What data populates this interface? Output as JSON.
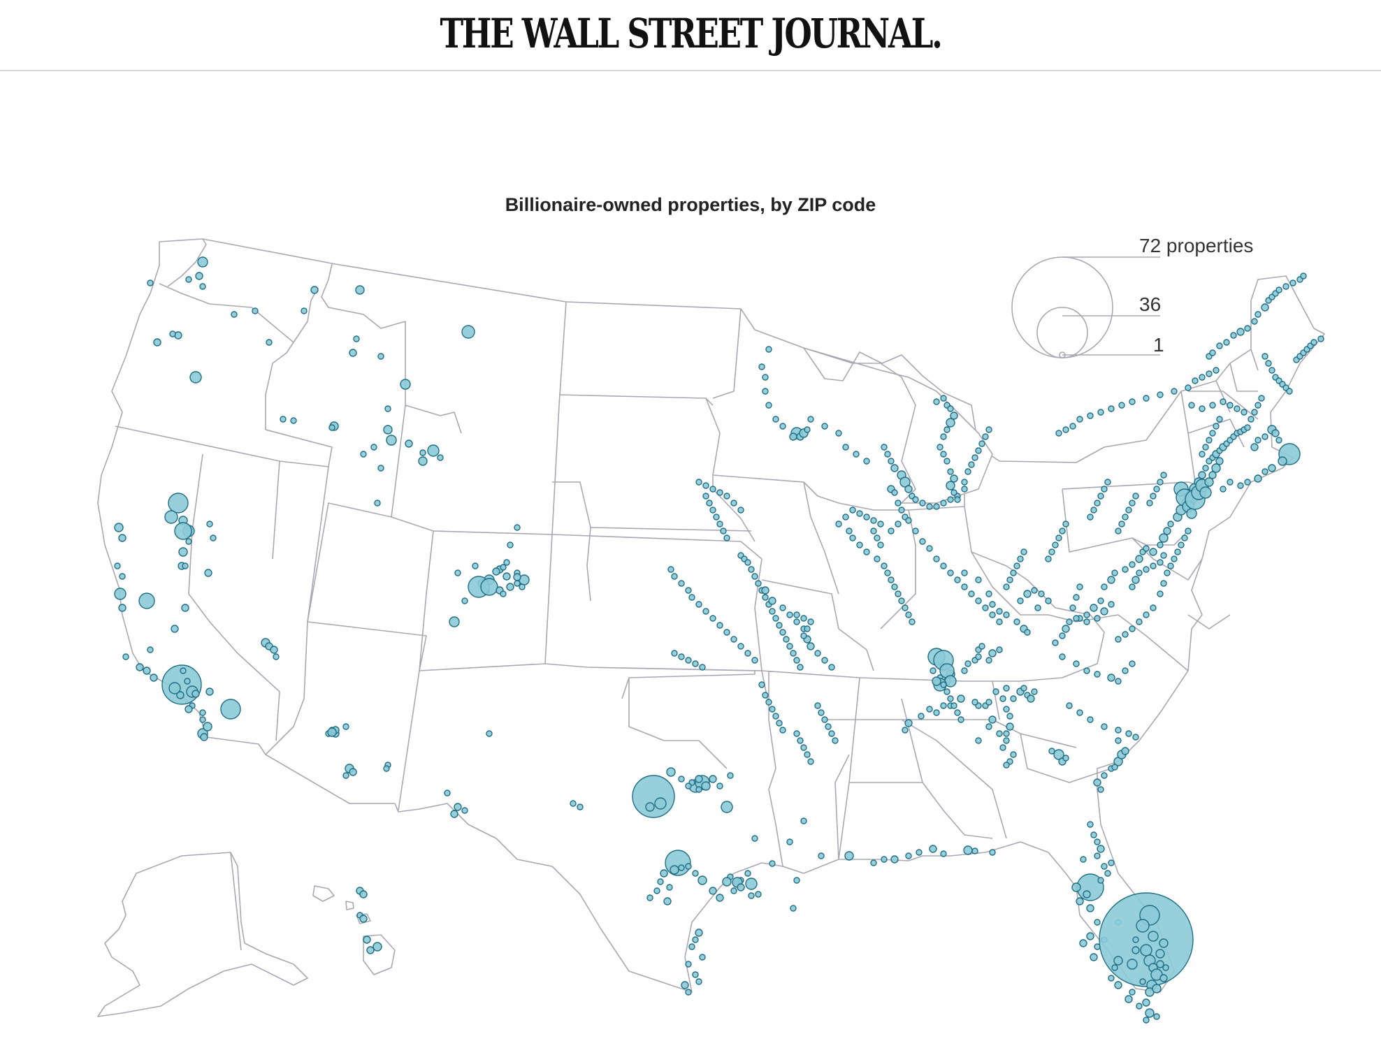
{
  "header": {
    "masthead": "THE WALL STREET JOURNAL."
  },
  "map": {
    "title": "Billionaire-owned properties, by ZIP code",
    "bubble_fill": "#8ccad7",
    "bubble_stroke": "#1f6e85",
    "state_stroke": "#a8a8b4",
    "legend": [
      {
        "value": 72,
        "label": "72 properties"
      },
      {
        "value": 36,
        "label": "36"
      },
      {
        "value": 1,
        "label": "1"
      }
    ]
  }
}
